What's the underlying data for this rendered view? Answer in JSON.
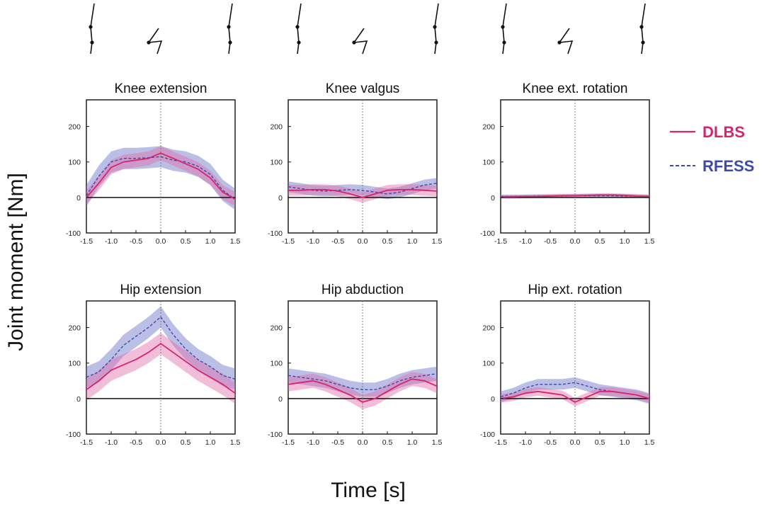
{
  "figure": {
    "ylabel": "Joint moment [Nm]",
    "xlabel": "Time [s]",
    "legend": [
      {
        "name": "DLBS",
        "color": "#d6246e",
        "style": "solid"
      },
      {
        "name": "RFESS",
        "color": "#3d4aa8",
        "style": "dashed"
      }
    ]
  },
  "chart_data": [
    {
      "type": "line",
      "title": "Knee extension",
      "xlim": [
        -1.5,
        1.5
      ],
      "ylim": [
        -100,
        275
      ],
      "xticks": [
        "-1.5",
        "-1.0",
        "-0.5",
        "0.0",
        "0.5",
        "1.0",
        "1.5"
      ],
      "yticks": [
        "-100",
        "0",
        "100",
        "200"
      ],
      "x": [
        -1.5,
        -1.25,
        -1.0,
        -0.75,
        -0.5,
        -0.25,
        0.0,
        0.25,
        0.5,
        0.75,
        1.0,
        1.25,
        1.5
      ],
      "series": [
        {
          "name": "DLBS",
          "values": [
            0,
            40,
            85,
            100,
            105,
            110,
            125,
            110,
            95,
            80,
            55,
            15,
            -5
          ],
          "band": 20
        },
        {
          "name": "RFESS",
          "values": [
            5,
            60,
            100,
            110,
            110,
            112,
            115,
            105,
            100,
            88,
            65,
            20,
            -5
          ],
          "band": 30
        }
      ]
    },
    {
      "type": "line",
      "title": "Knee valgus",
      "xlim": [
        -1.5,
        1.5
      ],
      "ylim": [
        -100,
        275
      ],
      "xticks": [
        "-1.5",
        "-1.0",
        "-0.5",
        "0.0",
        "0.5",
        "1.0",
        "1.5"
      ],
      "yticks": [
        "-100",
        "0",
        "100",
        "200"
      ],
      "x": [
        -1.5,
        -1.25,
        -1.0,
        -0.75,
        -0.5,
        -0.25,
        0.0,
        0.25,
        0.5,
        0.75,
        1.0,
        1.25,
        1.5
      ],
      "series": [
        {
          "name": "DLBS",
          "values": [
            20,
            20,
            22,
            22,
            18,
            10,
            0,
            10,
            20,
            22,
            22,
            20,
            18
          ],
          "band": 15
        },
        {
          "name": "RFESS",
          "values": [
            30,
            25,
            20,
            18,
            20,
            22,
            20,
            15,
            10,
            15,
            25,
            35,
            40
          ],
          "band": 15
        }
      ]
    },
    {
      "type": "line",
      "title": "Knee ext. rotation",
      "xlim": [
        -1.5,
        1.5
      ],
      "ylim": [
        -100,
        275
      ],
      "xticks": [
        "-1.5",
        "-1.0",
        "-0.5",
        "0.0",
        "0.5",
        "1.0",
        "1.5"
      ],
      "yticks": [
        "-100",
        "0",
        "100",
        "200"
      ],
      "x": [
        -1.5,
        -1.25,
        -1.0,
        -0.75,
        -0.5,
        -0.25,
        0.0,
        0.25,
        0.5,
        0.75,
        1.0,
        1.25,
        1.5
      ],
      "series": [
        {
          "name": "DLBS",
          "values": [
            2,
            2,
            3,
            3,
            4,
            5,
            5,
            6,
            7,
            7,
            6,
            4,
            3
          ],
          "band": 5
        },
        {
          "name": "RFESS",
          "values": [
            3,
            3,
            3,
            4,
            4,
            4,
            5,
            5,
            5,
            5,
            4,
            4,
            3
          ],
          "band": 5
        }
      ]
    },
    {
      "type": "line",
      "title": "Hip extension",
      "xlim": [
        -1.5,
        1.5
      ],
      "ylim": [
        -100,
        275
      ],
      "xticks": [
        "-1.5",
        "-1.0",
        "-0.5",
        "0.0",
        "0.5",
        "1.0",
        "1.5"
      ],
      "yticks": [
        "-100",
        "0",
        "100",
        "200"
      ],
      "x": [
        -1.5,
        -1.25,
        -1.0,
        -0.75,
        -0.5,
        -0.25,
        0.0,
        0.25,
        0.5,
        0.75,
        1.0,
        1.25,
        1.5
      ],
      "series": [
        {
          "name": "DLBS",
          "values": [
            25,
            50,
            80,
            95,
            110,
            130,
            155,
            130,
            105,
            80,
            60,
            40,
            15
          ],
          "band": 30
        },
        {
          "name": "RFESS",
          "values": [
            60,
            75,
            110,
            150,
            175,
            200,
            230,
            180,
            140,
            110,
            90,
            65,
            55
          ],
          "band": 30
        }
      ]
    },
    {
      "type": "line",
      "title": "Hip abduction",
      "xlim": [
        -1.5,
        1.5
      ],
      "ylim": [
        -100,
        275
      ],
      "xticks": [
        "-1.5",
        "-1.0",
        "-0.5",
        "0.0",
        "0.5",
        "1.0",
        "1.5"
      ],
      "yticks": [
        "-100",
        "0",
        "100",
        "200"
      ],
      "x": [
        -1.5,
        -1.25,
        -1.0,
        -0.75,
        -0.5,
        -0.25,
        0.0,
        0.25,
        0.5,
        0.75,
        1.0,
        1.25,
        1.5
      ],
      "series": [
        {
          "name": "DLBS",
          "values": [
            40,
            45,
            50,
            40,
            25,
            10,
            -10,
            0,
            20,
            40,
            55,
            50,
            35
          ],
          "band": 20
        },
        {
          "name": "RFESS",
          "values": [
            65,
            60,
            55,
            50,
            40,
            30,
            25,
            25,
            35,
            50,
            60,
            65,
            70
          ],
          "band": 20
        }
      ]
    },
    {
      "type": "line",
      "title": "Hip ext. rotation",
      "xlim": [
        -1.5,
        1.5
      ],
      "ylim": [
        -100,
        275
      ],
      "xticks": [
        "-1.5",
        "-1.0",
        "-0.5",
        "0.0",
        "0.5",
        "1.0",
        "1.5"
      ],
      "yticks": [
        "-100",
        "0",
        "100",
        "200"
      ],
      "x": [
        -1.5,
        -1.25,
        -1.0,
        -0.75,
        -0.5,
        -0.25,
        0.0,
        0.25,
        0.5,
        0.75,
        1.0,
        1.25,
        1.5
      ],
      "series": [
        {
          "name": "DLBS",
          "values": [
            0,
            5,
            15,
            20,
            15,
            10,
            -10,
            5,
            20,
            20,
            15,
            10,
            0
          ],
          "band": 12
        },
        {
          "name": "RFESS",
          "values": [
            5,
            15,
            30,
            40,
            40,
            40,
            45,
            35,
            25,
            20,
            15,
            10,
            0
          ],
          "band": 15
        }
      ]
    }
  ]
}
